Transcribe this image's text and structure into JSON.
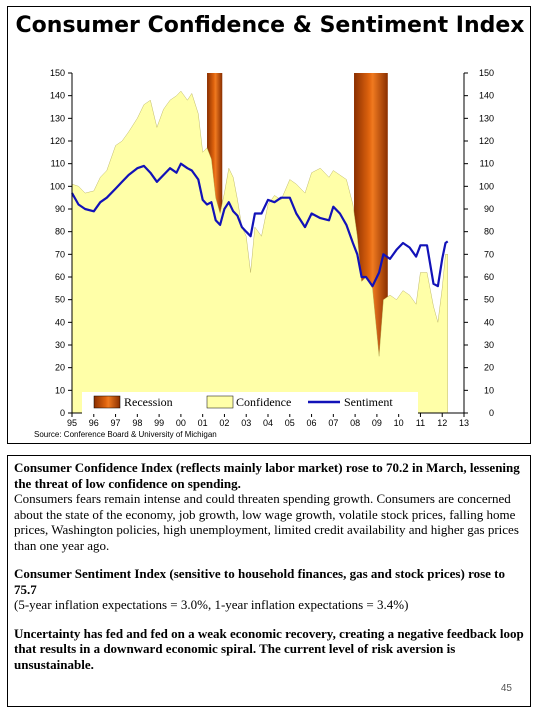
{
  "chart_data": {
    "type": "area",
    "title": "Consumer Confidence & Sentiment Index",
    "source": "Source: Conference Board & University of Michigan",
    "ylim": [
      0,
      150
    ],
    "yticks": [
      "0",
      "10",
      "20",
      "30",
      "40",
      "50",
      "60",
      "70",
      "80",
      "90",
      "100",
      "110",
      "120",
      "130",
      "140",
      "150"
    ],
    "xlim": [
      1995,
      2013
    ],
    "xticks": [
      "95",
      "96",
      "97",
      "98",
      "99",
      "00",
      "01",
      "02",
      "03",
      "04",
      "05",
      "06",
      "07",
      "08",
      "09",
      "10",
      "11",
      "12",
      "13"
    ],
    "grid": false,
    "legend_position": "bottom",
    "recession_periods": [
      [
        2001.2,
        2001.9
      ],
      [
        2007.95,
        2009.5
      ]
    ],
    "series": [
      {
        "name": "Confidence",
        "type": "area",
        "color": "#ffffa8",
        "x": [
          1995.0,
          1995.3,
          1995.6,
          1996.0,
          1996.3,
          1996.6,
          1997.0,
          1997.3,
          1997.6,
          1998.0,
          1998.3,
          1998.6,
          1998.9,
          1999.2,
          1999.5,
          1999.8,
          2000.0,
          2000.3,
          2000.5,
          2000.8,
          2001.0,
          2001.2,
          2001.4,
          2001.6,
          2001.8,
          2002.0,
          2002.2,
          2002.4,
          2002.6,
          2002.8,
          2003.0,
          2003.2,
          2003.4,
          2003.7,
          2004.0,
          2004.3,
          2004.6,
          2005.0,
          2005.3,
          2005.7,
          2006.0,
          2006.4,
          2006.8,
          2007.0,
          2007.3,
          2007.6,
          2007.9,
          2008.1,
          2008.3,
          2008.5,
          2008.8,
          2009.1,
          2009.3,
          2009.6,
          2009.9,
          2010.2,
          2010.5,
          2010.8,
          2011.0,
          2011.3,
          2011.6,
          2011.8,
          2012.0,
          2012.15,
          2012.25
        ],
        "values": [
          101,
          100,
          97,
          98,
          104,
          107,
          118,
          120,
          124,
          130,
          136,
          138,
          126,
          134,
          138,
          140,
          142,
          138,
          141,
          132,
          115,
          117,
          112,
          95,
          88,
          97,
          108,
          104,
          94,
          82,
          78,
          62,
          82,
          78,
          92,
          96,
          94,
          103,
          101,
          97,
          106,
          108,
          104,
          107,
          105,
          103,
          92,
          78,
          58,
          60,
          55,
          25,
          50,
          52,
          50,
          54,
          52,
          48,
          62,
          62,
          47,
          40,
          55,
          70,
          70
        ]
      },
      {
        "name": "Sentiment",
        "type": "line",
        "color": "#1212b8",
        "x": [
          1995.0,
          1995.3,
          1995.6,
          1996.0,
          1996.3,
          1996.6,
          1997.0,
          1997.3,
          1997.6,
          1998.0,
          1998.3,
          1998.6,
          1998.9,
          1999.2,
          1999.5,
          1999.8,
          2000.0,
          2000.3,
          2000.5,
          2000.8,
          2001.0,
          2001.2,
          2001.4,
          2001.6,
          2001.8,
          2002.0,
          2002.2,
          2002.4,
          2002.6,
          2002.8,
          2003.0,
          2003.2,
          2003.4,
          2003.7,
          2004.0,
          2004.3,
          2004.6,
          2005.0,
          2005.3,
          2005.7,
          2006.0,
          2006.4,
          2006.8,
          2007.0,
          2007.3,
          2007.6,
          2007.9,
          2008.1,
          2008.3,
          2008.5,
          2008.8,
          2009.1,
          2009.3,
          2009.6,
          2009.9,
          2010.2,
          2010.5,
          2010.8,
          2011.0,
          2011.3,
          2011.6,
          2011.8,
          2012.0,
          2012.15,
          2012.25
        ],
        "values": [
          97,
          92,
          90,
          89,
          93,
          95,
          99,
          102,
          105,
          108,
          109,
          106,
          102,
          105,
          108,
          106,
          110,
          108,
          107,
          103,
          94,
          92,
          93,
          85,
          83,
          90,
          93,
          89,
          87,
          82,
          80,
          78,
          88,
          88,
          94,
          93,
          95,
          95,
          88,
          82,
          88,
          86,
          85,
          91,
          88,
          83,
          75,
          70,
          60,
          60,
          56,
          62,
          70,
          68,
          72,
          75,
          73,
          69,
          74,
          74,
          57,
          56,
          68,
          75,
          75.7
        ]
      }
    ]
  },
  "legend": {
    "recession": "Recession",
    "confidence": "Confidence",
    "sentiment": "Sentiment"
  },
  "colors": {
    "recession": "#e0640e",
    "recession_dark": "#8a2f00",
    "confidence_fill": "#ffffa8",
    "sentiment_line": "#1212b8"
  },
  "text": {
    "p1_bold": "Consumer Confidence Index (reflects mainly labor market) rose to 70.2 in March, lessening the threat of low confidence on spending.",
    "p1_body": "Consumers fears remain intense and could threaten spending growth.  Consumers are concerned about the state of the economy, job growth, low wage growth, volatile stock prices, falling home prices, Washington policies, high unemployment, limited credit availability and higher gas prices than one year ago.",
    "p2_bold": "Consumer Sentiment Index (sensitive to household finances, gas and stock prices) rose to 75.7",
    "p2_body": "(5-year inflation expectations = 3.0%, 1-year inflation expectations = 3.4%)",
    "p3_bold": "Uncertainty has fed and fed on a weak economic recovery, creating a negative feedback loop that results in a downward economic spiral.  The current level of risk aversion is unsustainable."
  },
  "page_number": "45"
}
